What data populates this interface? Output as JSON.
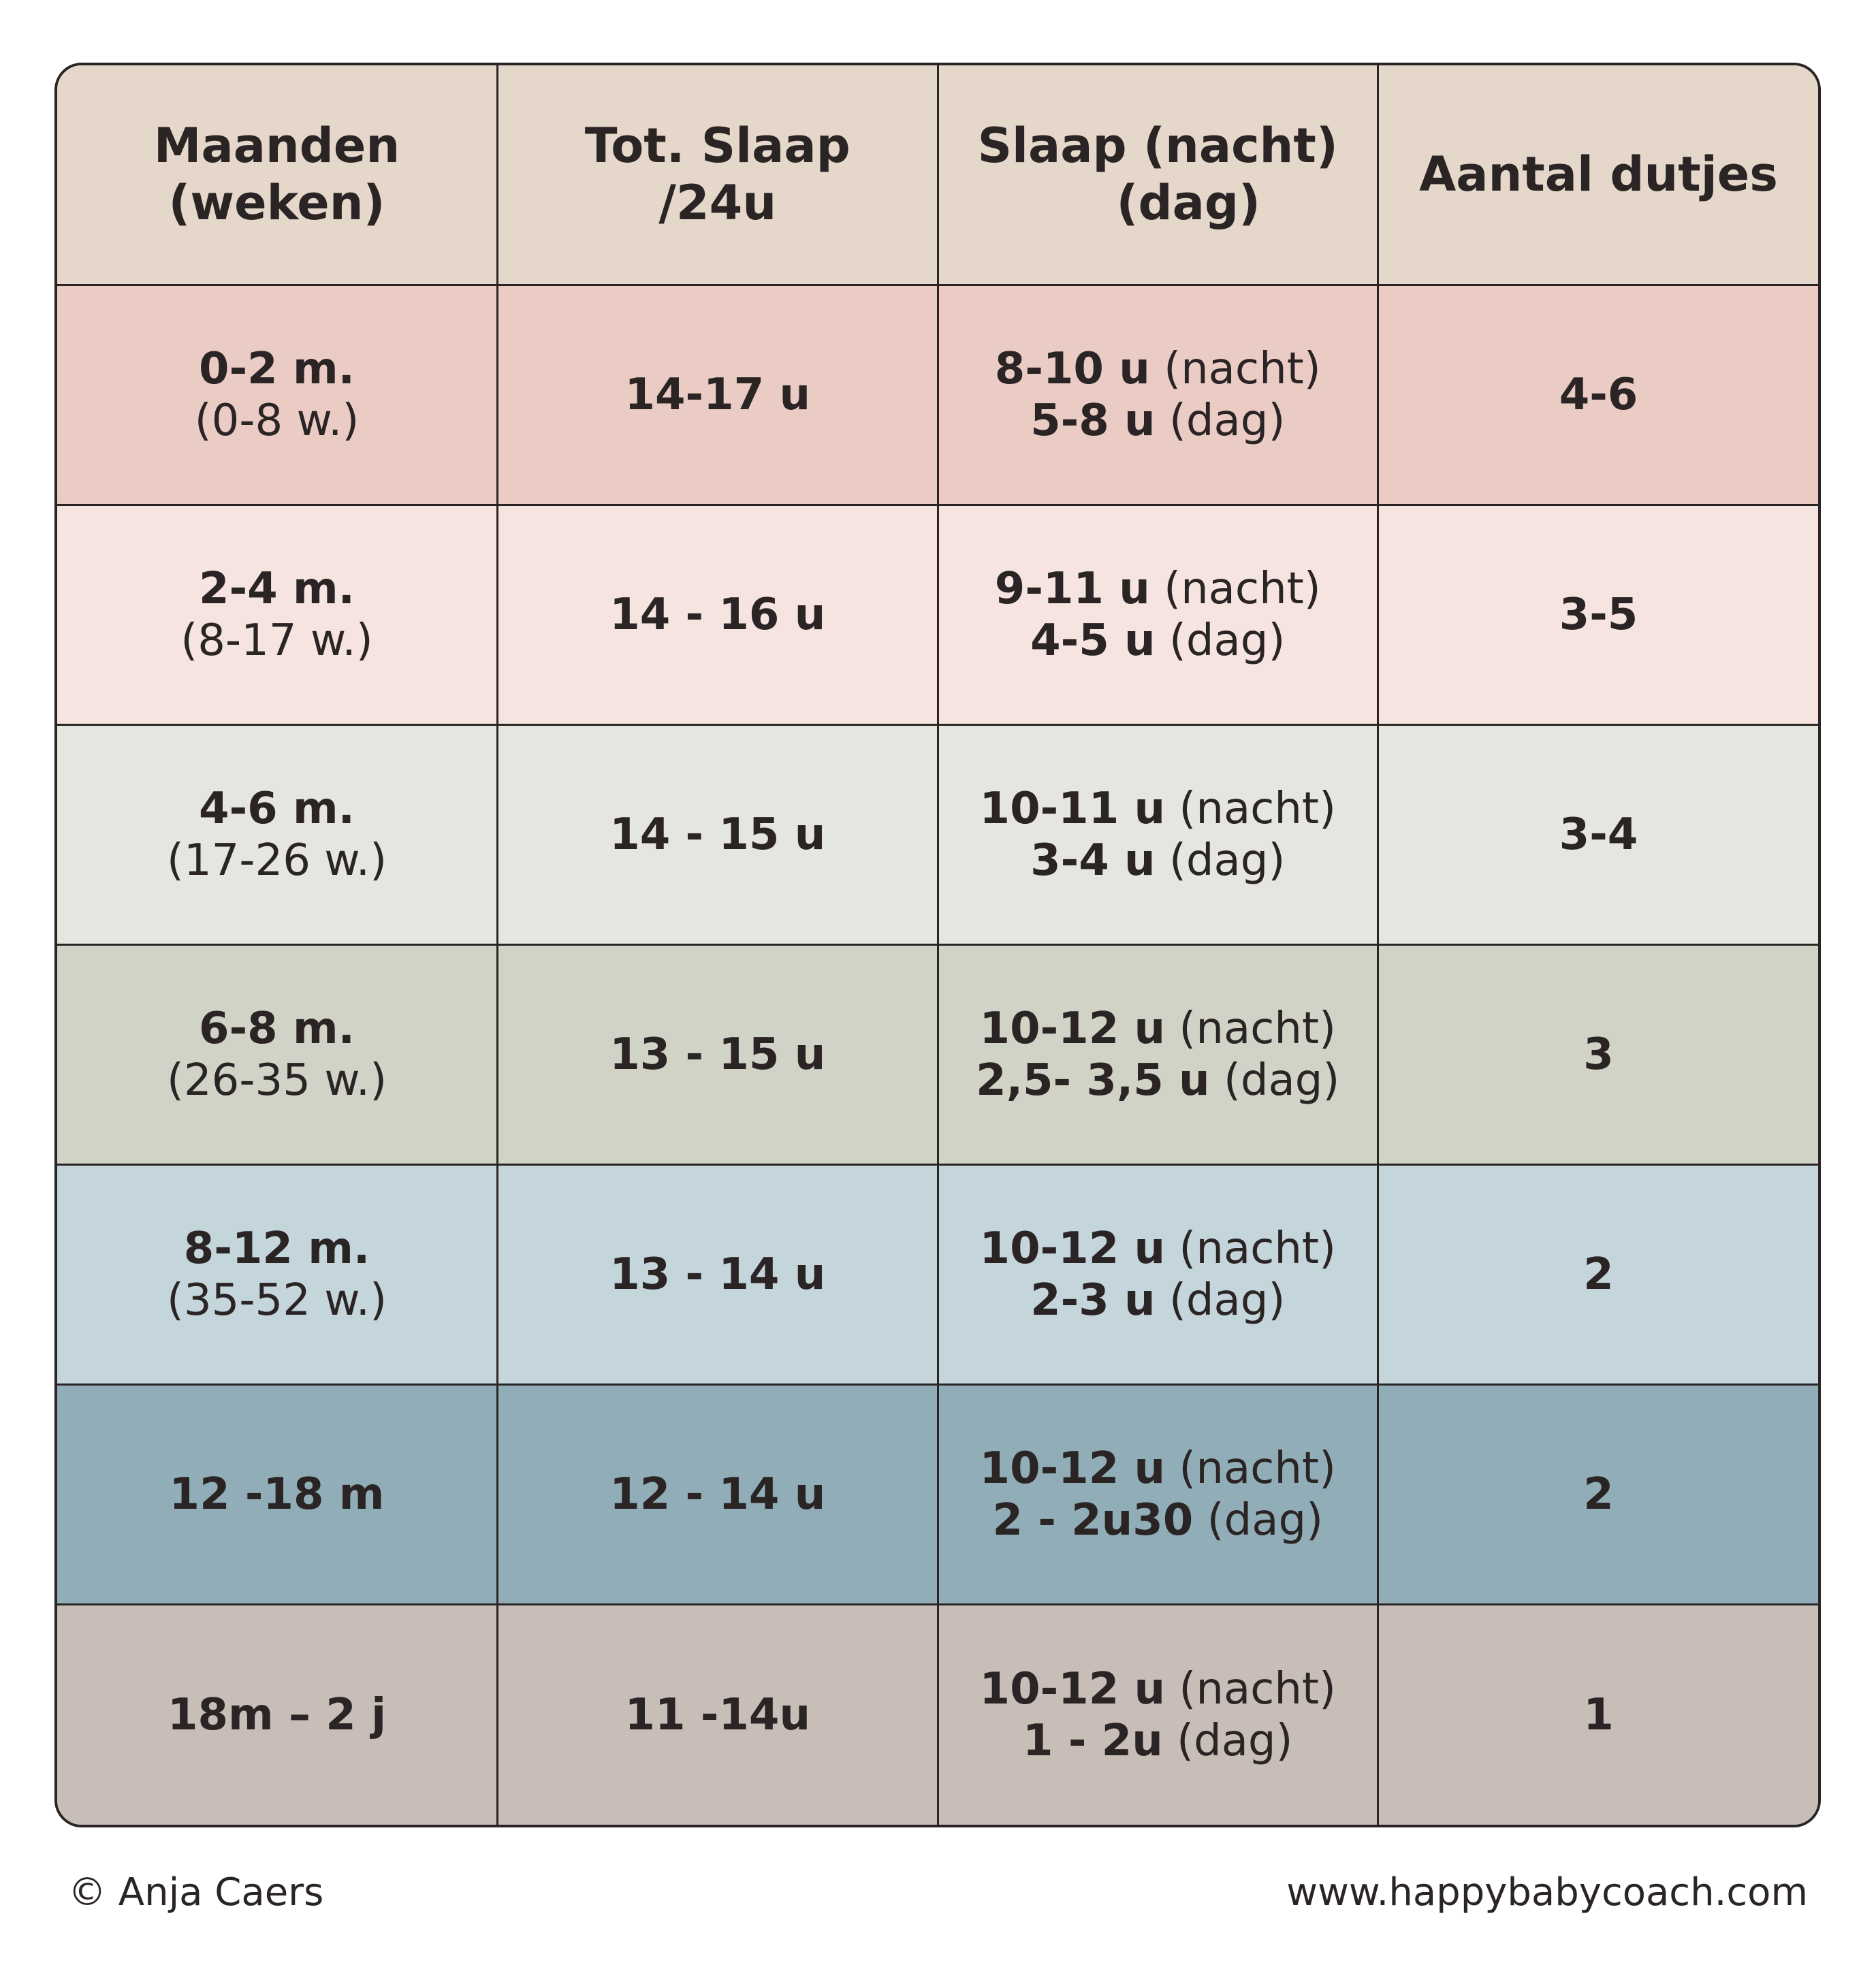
{
  "headers": [
    [
      "Maanden",
      "(weken)"
    ],
    [
      "Tot. Slaap",
      "/24u"
    ],
    [
      "Slaap (nacht)",
      "(dag)"
    ],
    [
      "Aantal dutjes"
    ]
  ],
  "rows": [
    {
      "bg": "#eaccc4",
      "age_bold": "0-2 m.",
      "age_weeks": "(0-8 w.)",
      "total": "14-17 u",
      "night_bold": "8-10 u",
      "night_label": "(nacht)",
      "day_bold": "5-8 u",
      "day_label": "(dag)",
      "naps": "4-6"
    },
    {
      "bg": "#f5e4df",
      "age_bold": "2-4 m.",
      "age_weeks": "(8-17 w.)",
      "total": "14 - 16 u",
      "night_bold": "9-11 u",
      "night_label": "(nacht)",
      "day_bold": "4-5 u",
      "day_label": "(dag)",
      "naps": "3-5"
    },
    {
      "bg": "#e6e6e1",
      "age_bold": "4-6 m.",
      "age_weeks": "(17-26 w.)",
      "total": "14 - 15 u",
      "night_bold": "10-11 u",
      "night_label": "(nacht)",
      "day_bold": "3-4 u",
      "day_label": "(dag)",
      "naps": "3-4"
    },
    {
      "bg": "#d1d3c7",
      "age_bold": "6-8 m.",
      "age_weeks": "(26-35 w.)",
      "total": "13 - 15 u",
      "night_bold": "10-12 u",
      "night_label": "(nacht)",
      "day_bold": "2,5- 3,5 u",
      "day_label": "(dag)",
      "naps": "3"
    },
    {
      "bg": "#c5d5dc",
      "age_bold": "8-12 m.",
      "age_weeks": "(35-52 w.)",
      "total": "13 - 14 u",
      "night_bold": "10-12 u",
      "night_label": "(nacht)",
      "day_bold": "2-3 u",
      "day_label": "(dag)",
      "naps": "2"
    },
    {
      "bg": "#91aeb8",
      "age_bold": "12 -18 m",
      "age_weeks": "",
      "total": "12 - 14 u",
      "night_bold": "10-12 u",
      "night_label": "(nacht)",
      "day_bold": "2 - 2u30",
      "day_label": "(dag)",
      "naps": "2"
    },
    {
      "bg": "#c9bdb8",
      "age_bold": "18m – 2 j",
      "age_weeks": "",
      "total": "11 -14u",
      "night_bold": "10-12 u",
      "night_label": "(nacht)",
      "day_bold": "1 - 2u",
      "day_label": "(dag)",
      "naps": "1"
    }
  ],
  "footer": {
    "copyright": "© Anja Caers",
    "website": "www.happybabycoach.com"
  }
}
